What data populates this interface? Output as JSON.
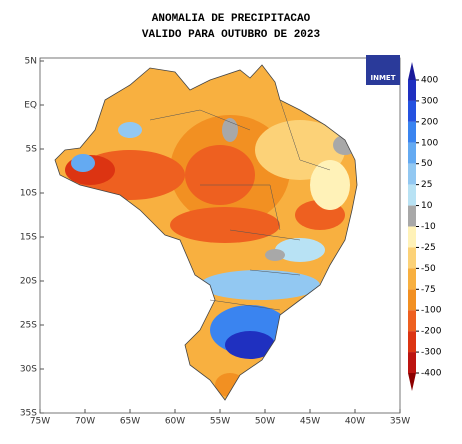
{
  "header": {
    "title": "ANOMALIA DE PRECIPITACAO",
    "subtitle": "VALIDO PARA OUTUBRO DE 2023"
  },
  "map": {
    "lon_labels": [
      "75W",
      "70W",
      "65W",
      "60W",
      "55W",
      "50W",
      "45W",
      "40W",
      "35W"
    ],
    "lat_labels": [
      "5N",
      "EQ",
      "5S",
      "10S",
      "15S",
      "20S",
      "25S",
      "30S",
      "35S"
    ],
    "logo": "INMET"
  },
  "colorbar": {
    "labels": [
      "400",
      "300",
      "200",
      "100",
      "50",
      "25",
      "10",
      "-10",
      "-25",
      "-50",
      "-75",
      "-100",
      "-200",
      "-300",
      "-400"
    ],
    "colors": [
      "#1a1a9a",
      "#1f30c0",
      "#2552e0",
      "#3a84f0",
      "#64aaf2",
      "#92c8f2",
      "#b8e2f4",
      "#a8a8a8",
      "#fff2b8",
      "#fcd278",
      "#f8b040",
      "#f29022",
      "#ee6020",
      "#dc3412",
      "#bc1410",
      "#8c0000"
    ]
  }
}
